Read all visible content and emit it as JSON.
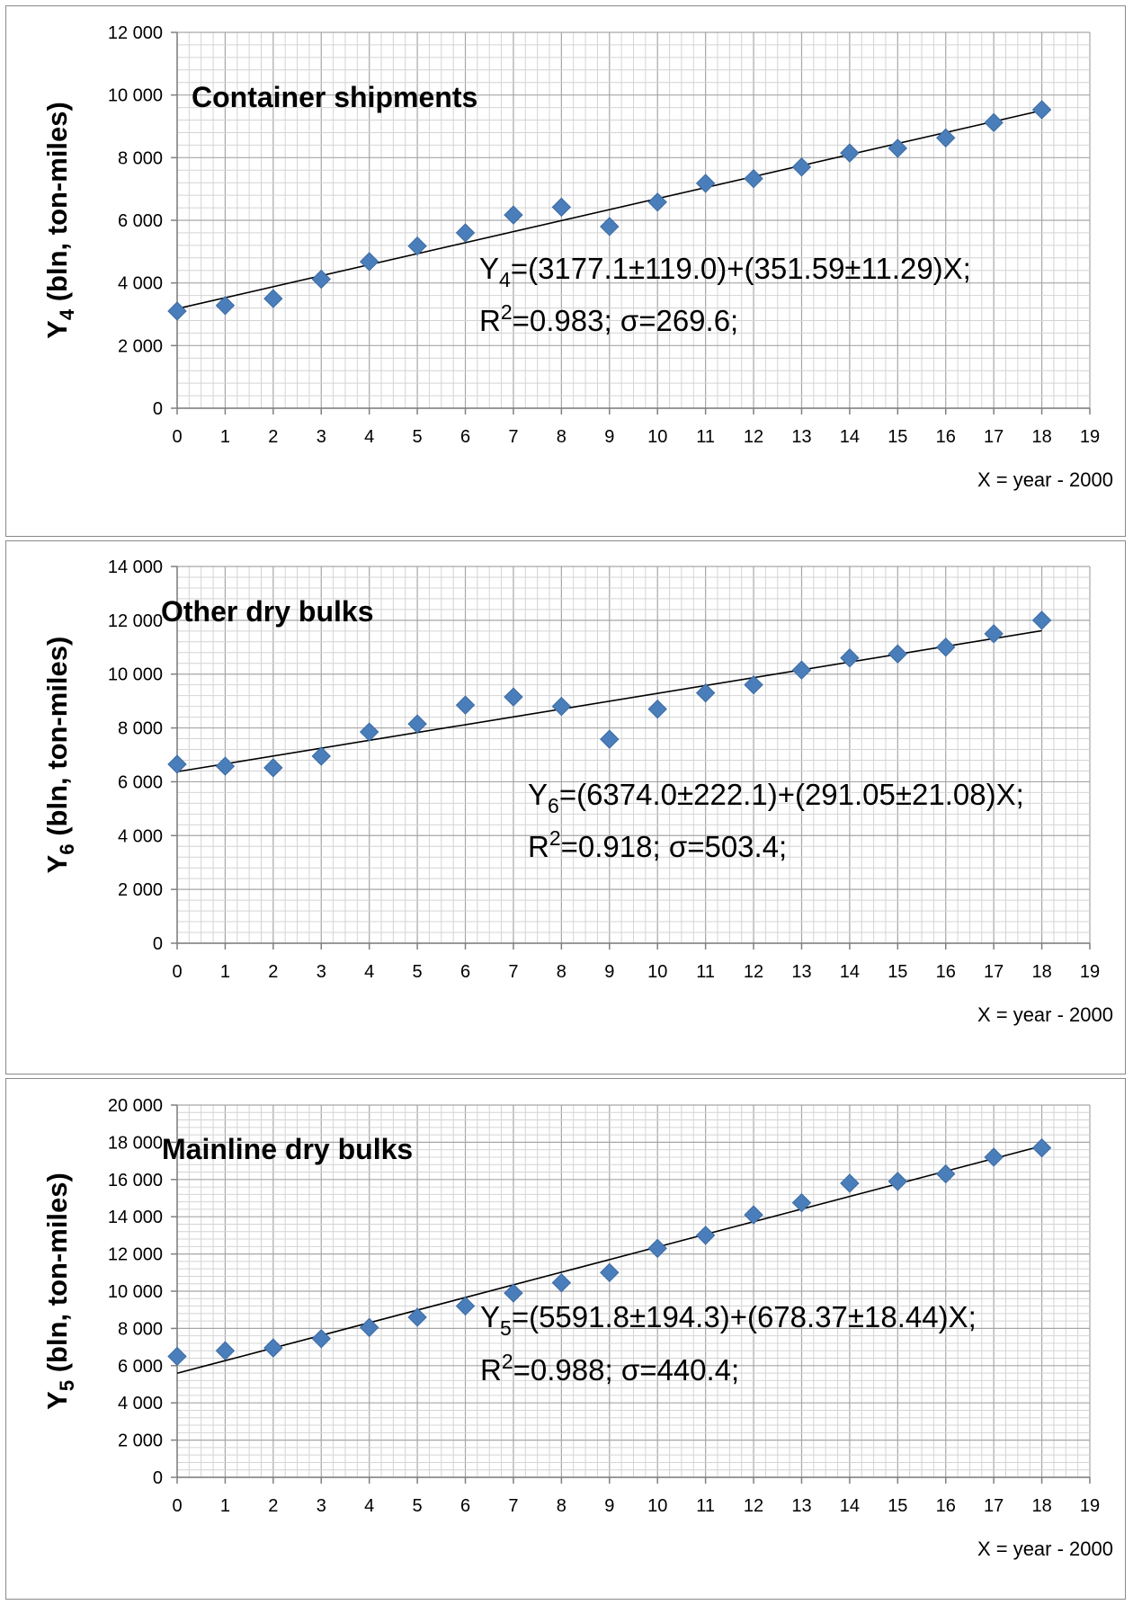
{
  "chart_data": [
    {
      "type": "scatter",
      "title": "Container shipments",
      "ylabel": {
        "base": "Y",
        "sub": "4",
        "rest": " (bln, ton-miles)"
      },
      "xlabel": "X = year - 2000",
      "xlim": [
        0,
        19
      ],
      "ylim": [
        0,
        12000
      ],
      "ystep": 2000,
      "ytick_labels": [
        "0",
        "2 000",
        "4 000",
        "6 000",
        "8 000",
        "10 000",
        "12 000"
      ],
      "xtick_labels": [
        "0",
        "1",
        "2",
        "3",
        "4",
        "5",
        "6",
        "7",
        "8",
        "9",
        "10",
        "11",
        "12",
        "13",
        "14",
        "15",
        "16",
        "17",
        "18",
        "19"
      ],
      "grid": true,
      "x": [
        0,
        1,
        2,
        3,
        4,
        5,
        6,
        7,
        8,
        9,
        10,
        11,
        12,
        13,
        14,
        15,
        16,
        17,
        18
      ],
      "y": [
        3100,
        3280,
        3500,
        4120,
        4680,
        5180,
        5600,
        6170,
        6420,
        5800,
        6580,
        7180,
        7330,
        7700,
        8150,
        8300,
        8630,
        9120,
        9530
      ],
      "trendline": {
        "intercept": 3177.1,
        "slope": 351.59
      },
      "equation": {
        "line1": {
          "base": "Y",
          "sub": "4",
          "rest": "=(3177.1±119.0)+(351.59±11.29)X;"
        },
        "line2": {
          "base": "R",
          "sup": "2",
          "rest": "=0.983; σ=269.6;"
        }
      },
      "marker_color": "#4a7ebb"
    },
    {
      "type": "scatter",
      "title": "Other dry bulks",
      "ylabel": {
        "base": "Y",
        "sub": "6",
        "rest": " (bln, ton-miles)"
      },
      "xlabel": "X = year - 2000",
      "xlim": [
        0,
        19
      ],
      "ylim": [
        0,
        14000
      ],
      "ystep": 2000,
      "ytick_labels": [
        "0",
        "2 000",
        "4 000",
        "6 000",
        "8 000",
        "10 000",
        "12 000",
        "14 000"
      ],
      "xtick_labels": [
        "0",
        "1",
        "2",
        "3",
        "4",
        "5",
        "6",
        "7",
        "8",
        "9",
        "10",
        "11",
        "12",
        "13",
        "14",
        "15",
        "16",
        "17",
        "18",
        "19"
      ],
      "grid": true,
      "x": [
        0,
        1,
        2,
        3,
        4,
        5,
        6,
        7,
        8,
        9,
        10,
        11,
        12,
        13,
        14,
        15,
        16,
        17,
        18
      ],
      "y": [
        6650,
        6580,
        6520,
        6950,
        7850,
        8150,
        8850,
        9150,
        8800,
        7580,
        8700,
        9300,
        9600,
        10150,
        10600,
        10750,
        11000,
        11500,
        12000
      ],
      "trendline": {
        "intercept": 6374.0,
        "slope": 291.05
      },
      "equation": {
        "line1": {
          "base": "Y",
          "sub": "6",
          "rest": "=(6374.0±222.1)+(291.05±21.08)X;"
        },
        "line2": {
          "base": "R",
          "sup": "2",
          "rest": "=0.918; σ=503.4;"
        }
      },
      "marker_color": "#4a7ebb"
    },
    {
      "type": "scatter",
      "title": "Mainline dry bulks",
      "ylabel": {
        "base": "Y",
        "sub": "5",
        "rest": " (bln, ton-miles)"
      },
      "xlabel": "X = year - 2000",
      "xlim": [
        0,
        19
      ],
      "ylim": [
        0,
        20000
      ],
      "ystep": 2000,
      "ytick_labels": [
        "0",
        "2 000",
        "4 000",
        "6 000",
        "8 000",
        "10 000",
        "12 000",
        "14 000",
        "16 000",
        "18 000",
        "20 000"
      ],
      "xtick_labels": [
        "0",
        "1",
        "2",
        "3",
        "4",
        "5",
        "6",
        "7",
        "8",
        "9",
        "10",
        "11",
        "12",
        "13",
        "14",
        "15",
        "16",
        "17",
        "18",
        "19"
      ],
      "grid": true,
      "x": [
        0,
        1,
        2,
        3,
        4,
        5,
        6,
        7,
        8,
        9,
        10,
        11,
        12,
        13,
        14,
        15,
        16,
        17,
        18
      ],
      "y": [
        6500,
        6800,
        6950,
        7450,
        8050,
        8600,
        9200,
        9900,
        10450,
        11000,
        12300,
        13000,
        14100,
        14750,
        15800,
        15900,
        16300,
        17200,
        17700
      ],
      "trendline": {
        "intercept": 5591.8,
        "slope": 678.37
      },
      "equation": {
        "line1": {
          "base": "Y",
          "sub": "5",
          "rest": "=(5591.8±194.3)+(678.37±18.44)X;"
        },
        "line2": {
          "base": "R",
          "sup": "2",
          "rest": "=0.988; σ=440.4;"
        }
      },
      "marker_color": "#4a7ebb"
    }
  ]
}
